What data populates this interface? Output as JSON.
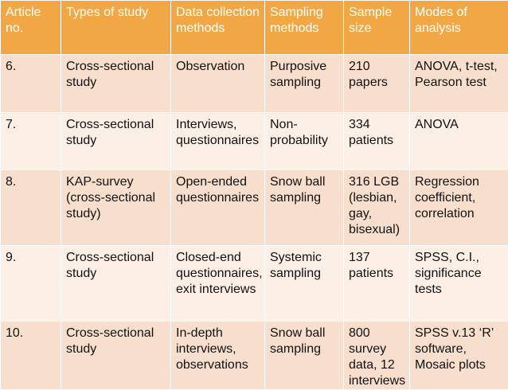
{
  "table": {
    "headers": [
      "Article no.",
      "Types of study",
      "Data collection methods",
      "Sampling methods",
      "Sample size",
      "Modes of analysis"
    ],
    "rows": [
      [
        "6.",
        "Cross-sectional study",
        "Observation",
        "Purposive sampling",
        "210 papers",
        "ANOVA, t-test, Pearson test"
      ],
      [
        "7.",
        "Cross-sectional study",
        "Interviews, questionnaires",
        "Non-probability",
        "334 patients",
        "ANOVA"
      ],
      [
        "8.",
        "KAP-survey (cross-sectional study)",
        "Open-ended questionnaires",
        "Snow ball sampling",
        "316 LGB (lesbian, gay, bisexual)",
        "Regression coefficient, correlation"
      ],
      [
        "9.",
        "Cross-sectional study",
        "Closed-end questionnaires, exit interviews",
        "Systemic sampling",
        "137 patients",
        "SPSS, C.I., significance tests"
      ],
      [
        "10.",
        "Cross-sectional study",
        "In-depth interviews, observations",
        "Snow ball sampling",
        "800 survey data, 12 interviews",
        "SPSS v.13 ‘R’ software, Mosaic plots"
      ]
    ]
  },
  "colors": {
    "header_bg": "#f1a844",
    "row_dark": "#f8dfcd",
    "row_light": "#fcefe6"
  }
}
